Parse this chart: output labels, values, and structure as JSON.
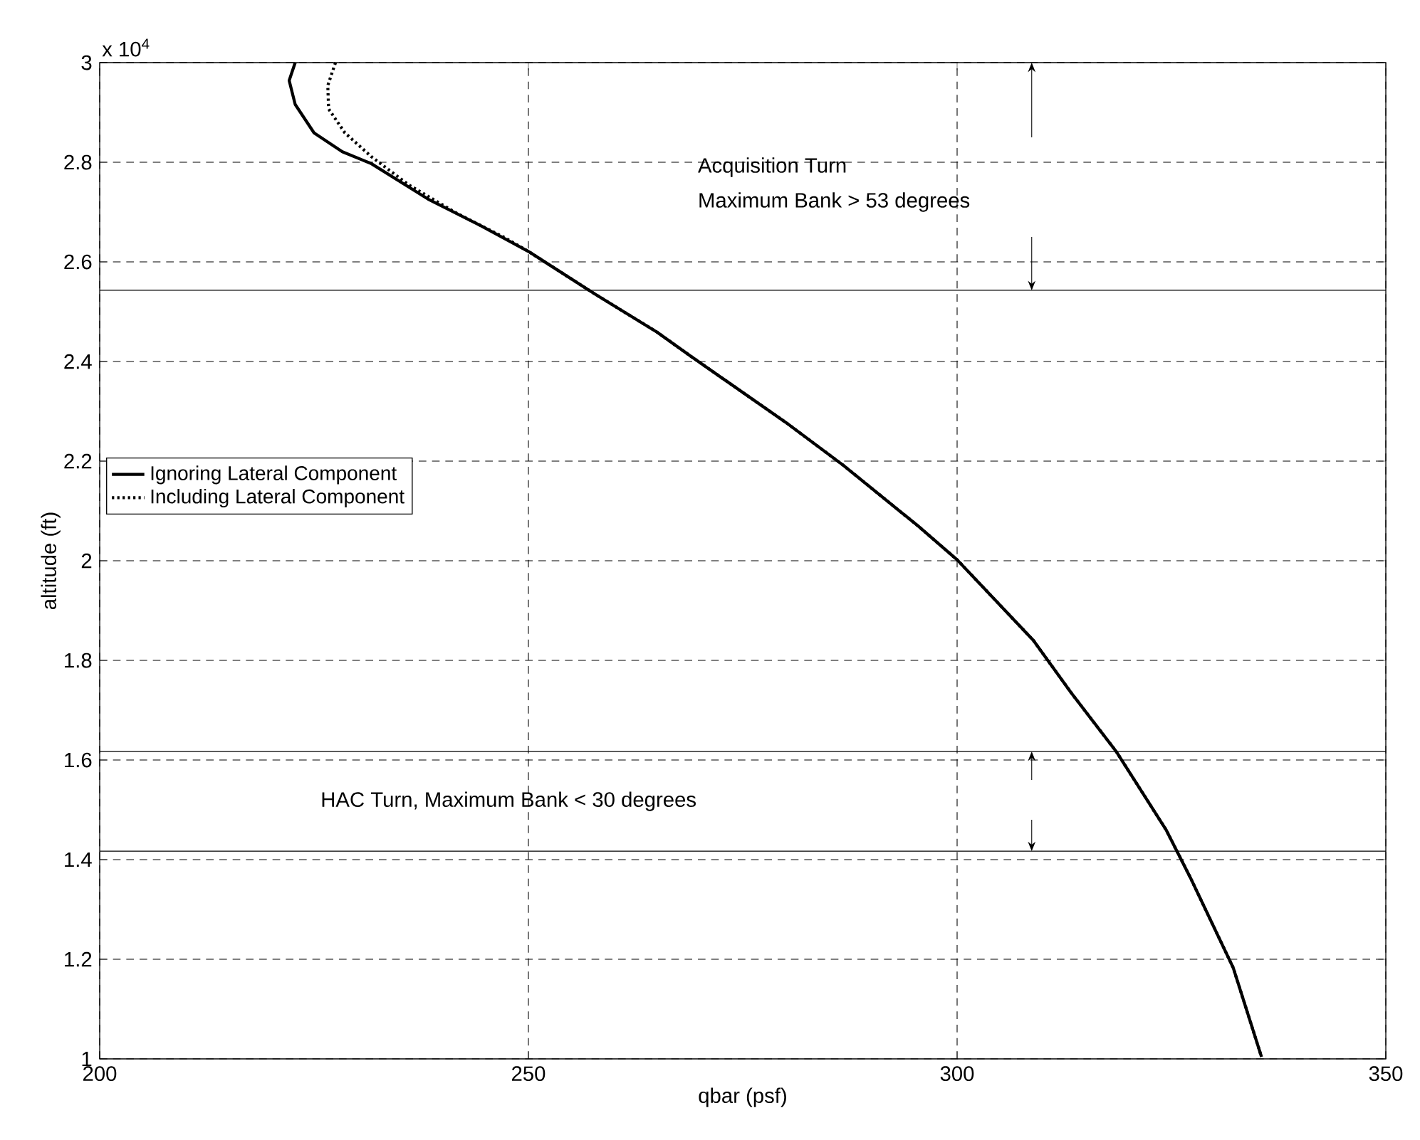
{
  "chart_data": {
    "type": "line",
    "xlabel": "qbar (psf)",
    "ylabel": "altitude (ft)",
    "xlim": [
      200,
      350
    ],
    "xticks": [
      200,
      250,
      300,
      350
    ],
    "ylim": [
      1,
      3
    ],
    "yticks": [
      1,
      1.2,
      1.4,
      1.6,
      1.8,
      2,
      2.2,
      2.4,
      2.6,
      2.8,
      3
    ],
    "grid": true,
    "legend": "left",
    "series": [
      {
        "name": "Ignoring Lateral Component",
        "color": "#000000",
        "line_style": "solid",
        "x": [
          222.8,
          222.1,
          222.8,
          225,
          228.3,
          231.7,
          238.3,
          244.4,
          250,
          257.8,
          265,
          268.9,
          280,
          286.7,
          295.5,
          300,
          308.9,
          313.3,
          318.6,
          324.4,
          327.2,
          332.2,
          335.5
        ],
        "values": [
          3.0,
          2.964,
          2.916,
          2.859,
          2.821,
          2.797,
          2.726,
          2.673,
          2.621,
          2.535,
          2.459,
          2.411,
          2.278,
          2.192,
          2.069,
          2.002,
          1.84,
          1.735,
          1.616,
          1.459,
          1.364,
          1.183,
          1.004
        ]
      },
      {
        "name": "Including Lateral Component",
        "color": "#000000",
        "line_style": "dotted",
        "x": [
          227.5,
          226.6,
          226.7,
          228.6,
          231.7,
          236.1,
          241.7,
          247.2,
          250,
          257.8,
          265,
          268.9,
          280,
          286.7,
          295.5,
          300,
          308.9,
          313.3,
          318.6,
          324.4,
          327.2,
          332.2,
          335.5
        ],
        "values": [
          3.0,
          2.954,
          2.907,
          2.859,
          2.811,
          2.754,
          2.697,
          2.649,
          2.621,
          2.535,
          2.459,
          2.411,
          2.278,
          2.192,
          2.069,
          2.002,
          1.84,
          1.735,
          1.616,
          1.459,
          1.364,
          1.183,
          1.004
        ]
      }
    ],
    "ref_lines": [
      {
        "axis": "y",
        "value": 2.543,
        "color": "#000000",
        "line_style": "solid"
      },
      {
        "axis": "y",
        "value": 1.617,
        "color": "#000000",
        "line_style": "solid"
      },
      {
        "axis": "y",
        "value": 1.417,
        "color": "#000000",
        "line_style": "solid"
      }
    ],
    "annotations": [
      "x 10$^{4}$",
      "Acquisition Turn",
      "Maximum Bank > 53 degrees",
      "HAC Turn, Maximum Bank < 30 degrees"
    ]
  }
}
